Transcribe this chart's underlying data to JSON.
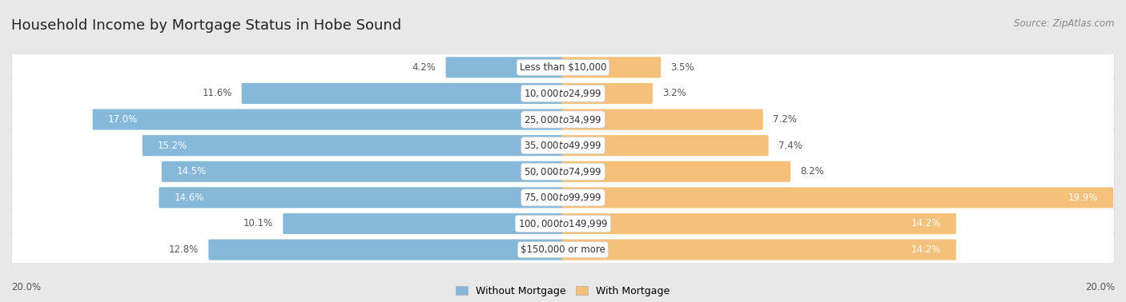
{
  "title": "Household Income by Mortgage Status in Hobe Sound",
  "source": "Source: ZipAtlas.com",
  "categories": [
    "Less than $10,000",
    "$10,000 to $24,999",
    "$25,000 to $34,999",
    "$35,000 to $49,999",
    "$50,000 to $74,999",
    "$75,000 to $99,999",
    "$100,000 to $149,999",
    "$150,000 or more"
  ],
  "without_mortgage": [
    4.2,
    11.6,
    17.0,
    15.2,
    14.5,
    14.6,
    10.1,
    12.8
  ],
  "with_mortgage": [
    3.5,
    3.2,
    7.2,
    7.4,
    8.2,
    19.9,
    14.2,
    14.2
  ],
  "color_without": "#85b8d9",
  "color_with": "#f5c07a",
  "color_with_dark": "#e8a84a",
  "bg_color": "#e8e8e8",
  "row_bg_color": "#f2f2f2",
  "row_border_color": "#d0d0d0",
  "max_val": 20.0,
  "axis_label": "20.0%",
  "title_fontsize": 13,
  "label_fontsize": 8.5,
  "value_fontsize": 8.5,
  "source_fontsize": 8.5,
  "legend_fontsize": 9
}
